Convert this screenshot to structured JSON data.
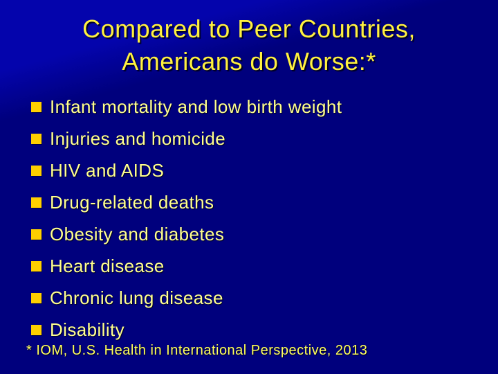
{
  "slide": {
    "title_line1": "Compared to Peer Countries,",
    "title_line2": "Americans do Worse:*",
    "bullets": [
      "Infant mortality and low birth weight",
      "Injuries and homicide",
      "HIV and AIDS",
      "Drug-related deaths",
      "Obesity and diabetes",
      "Heart disease",
      "Chronic lung disease",
      "Disability"
    ],
    "footnote": "* IOM, U.S. Health in International Perspective, 2013",
    "colors": {
      "background_top": "#0404AC",
      "background": "#00007D",
      "title_text": "#FFF13F",
      "bullet_text": "#FFFF8F",
      "bullet_marker": "#FFCF00",
      "footnote_text": "#FFFF5C"
    }
  }
}
